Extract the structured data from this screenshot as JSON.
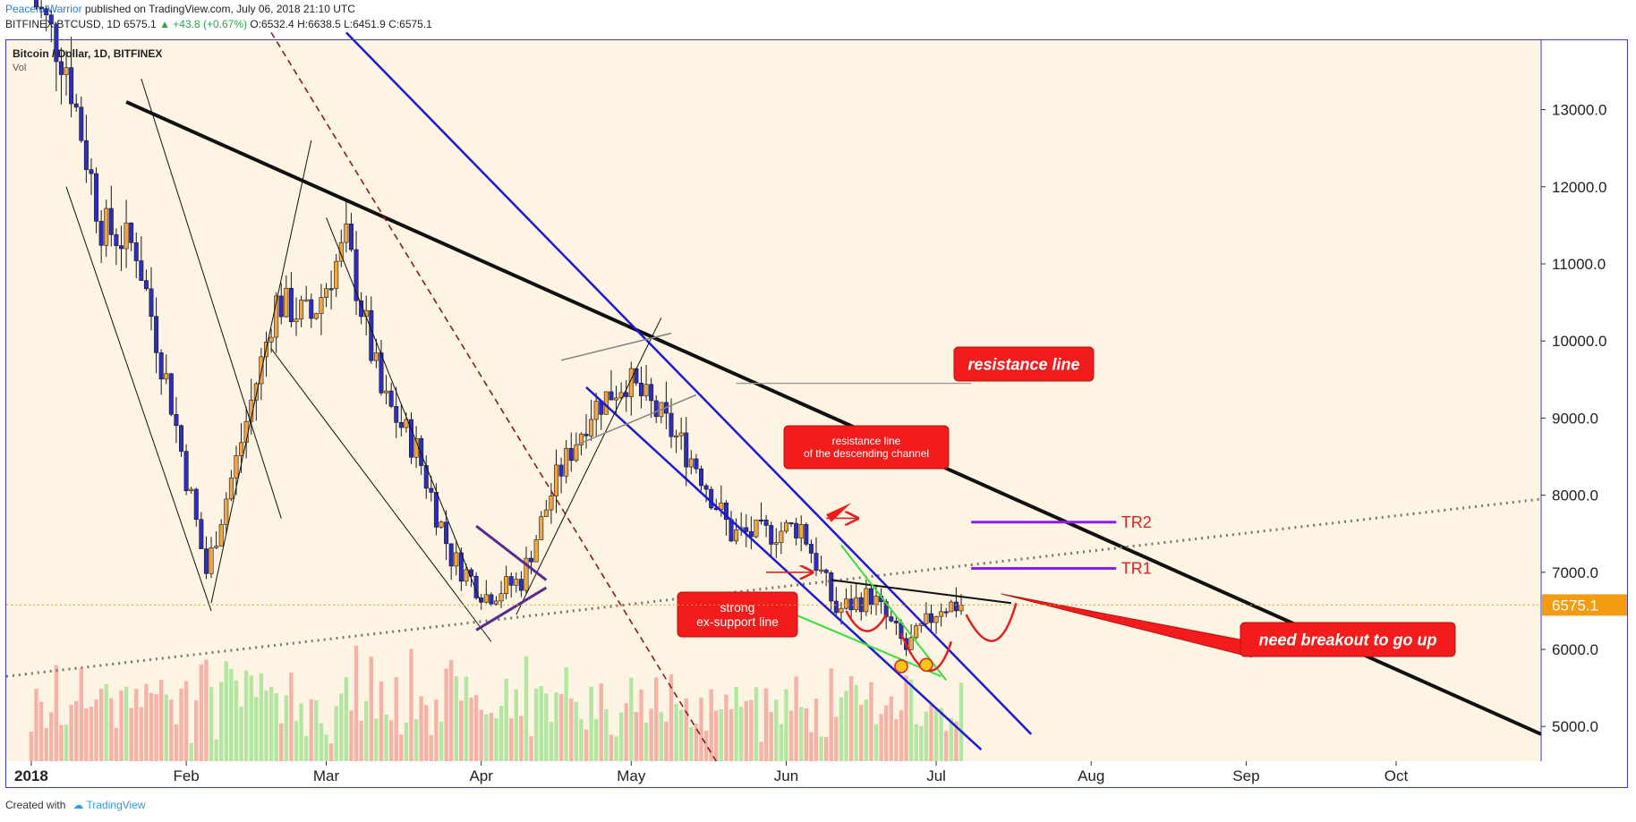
{
  "header": {
    "author": "PeacefulWarrior",
    "published": " published on TradingView.com, July 06, 2018 21:10 UTC",
    "symbol_line": "BITFINEX:BTCUSD, 1D",
    "price": "6575.1",
    "change": "▲ +43.8 (+0.67%)",
    "ohlc": "O:6532.4 H:6638.5 L:6451.9 C:6575.1",
    "legend_title": "Bitcoin / Dollar, 1D, BITFINEX",
    "legend_sub": "Vol"
  },
  "footer": {
    "created_with": "Created with",
    "brand": "TradingView"
  },
  "chart_data": {
    "type": "candlestick",
    "symbol": "BITFINEX:BTCUSD",
    "interval": "1D",
    "y_axis": {
      "ticks": [
        5000,
        6000,
        7000,
        8000,
        9000,
        10000,
        11000,
        12000,
        13000
      ],
      "tick_labels": [
        "5000.0",
        "6000.0",
        "7000.0",
        "8000.0",
        "9000.0",
        "10000.0",
        "11000.0",
        "12000.0",
        "13000.0"
      ],
      "ylim": [
        4550,
        13900
      ]
    },
    "x_axis": {
      "tick_labels": [
        "2018",
        "Feb",
        "Mar",
        "Apr",
        "May",
        "Jun",
        "Jul",
        "Aug",
        "Sep",
        "Oct"
      ],
      "tick_dates": [
        "2018-01-01",
        "2018-02-01",
        "2018-03-01",
        "2018-04-01",
        "2018-05-01",
        "2018-06-01",
        "2018-07-01",
        "2018-08-01",
        "2018-09-01",
        "2018-10-01"
      ],
      "xlim": [
        "2017-12-27",
        "2018-10-30"
      ]
    },
    "last_price": {
      "value": 6575.1,
      "label": "6575.1",
      "color": "#f39c12"
    },
    "colors": {
      "up": "#f2a541",
      "down": "#2d2dc2",
      "vol_up": "#b3e6a1",
      "vol_down": "#f5b3a8",
      "background": "#fdf4e3"
    },
    "weekly_closes": [
      {
        "date": "2018-01-01",
        "close": 14500
      },
      {
        "date": "2018-01-08",
        "close": 13600
      },
      {
        "date": "2018-01-15",
        "close": 11500
      },
      {
        "date": "2018-01-22",
        "close": 11200
      },
      {
        "date": "2018-01-29",
        "close": 9200
      },
      {
        "date": "2018-02-05",
        "close": 7000
      },
      {
        "date": "2018-02-12",
        "close": 8700
      },
      {
        "date": "2018-02-19",
        "close": 10500
      },
      {
        "date": "2018-02-26",
        "close": 10300
      },
      {
        "date": "2018-03-05",
        "close": 11300
      },
      {
        "date": "2018-03-12",
        "close": 9300
      },
      {
        "date": "2018-03-19",
        "close": 8600
      },
      {
        "date": "2018-03-26",
        "close": 7200
      },
      {
        "date": "2018-04-02",
        "close": 6700
      },
      {
        "date": "2018-04-09",
        "close": 6900
      },
      {
        "date": "2018-04-16",
        "close": 8200
      },
      {
        "date": "2018-04-23",
        "close": 9100
      },
      {
        "date": "2018-04-30",
        "close": 9500
      },
      {
        "date": "2018-05-07",
        "close": 9000
      },
      {
        "date": "2018-05-14",
        "close": 8400
      },
      {
        "date": "2018-05-21",
        "close": 7500
      },
      {
        "date": "2018-05-28",
        "close": 7500
      },
      {
        "date": "2018-06-04",
        "close": 7600
      },
      {
        "date": "2018-06-11",
        "close": 6500
      },
      {
        "date": "2018-06-18",
        "close": 6700
      },
      {
        "date": "2018-06-25",
        "close": 6000
      },
      {
        "date": "2018-07-02",
        "close": 6575
      }
    ],
    "annotations": [
      {
        "text": "resistance line"
      },
      {
        "text": "resistance line\nof the descending channel"
      },
      {
        "text": "strong\nex-support line"
      },
      {
        "text": "need breakout to go up"
      },
      {
        "text": "TR2",
        "value": 7650
      },
      {
        "text": "TR1",
        "value": 7050
      }
    ]
  }
}
